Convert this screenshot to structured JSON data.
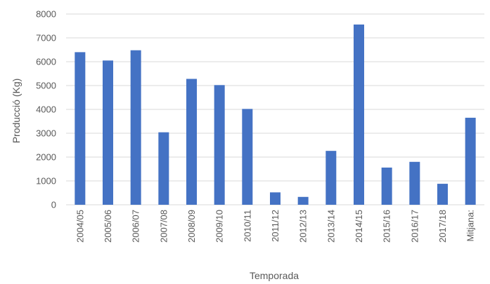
{
  "chart_data": {
    "type": "bar",
    "title": "",
    "xlabel": "Temporada",
    "ylabel": "Producció (Kg)",
    "ylim": [
      0,
      8000
    ],
    "yticks": [
      0,
      1000,
      2000,
      3000,
      4000,
      5000,
      6000,
      7000,
      8000
    ],
    "grid": true,
    "legend": "none",
    "categories": [
      "2004/05",
      "2005/06",
      "2006/07",
      "2007/08",
      "2008/09",
      "2009/10",
      "2010/11",
      "2011/12",
      "2012/13",
      "2013/14",
      "2014/15",
      "2015/16",
      "2016/17",
      "2017/18",
      "Mitjana:"
    ],
    "values": [
      6400,
      6050,
      6480,
      3040,
      5280,
      5020,
      4020,
      520,
      330,
      2260,
      7560,
      1560,
      1800,
      880,
      3650
    ],
    "colors": {
      "bar": "#4472C4",
      "grid": "#D9D9D9",
      "text": "#595959"
    }
  }
}
